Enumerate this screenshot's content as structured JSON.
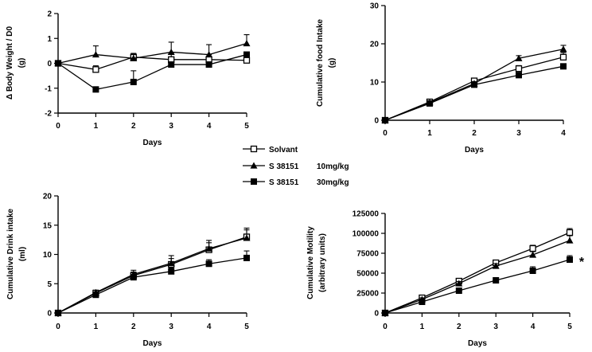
{
  "legend": {
    "entries": [
      {
        "label": "Solvant",
        "dose": "",
        "marker": "square-open"
      },
      {
        "label": "S 38151",
        "dose": "10mg/kg",
        "marker": "triangle-filled"
      },
      {
        "label": "S 38151",
        "dose": "30mg/kg",
        "marker": "square-filled"
      }
    ]
  },
  "chart_data": [
    {
      "type": "line",
      "id": "body-weight",
      "xlabel": "Days",
      "ylabel_lines": [
        "Δ Body Weight / D0",
        "(g)"
      ],
      "xlim": [
        0,
        5
      ],
      "ylim": [
        -2,
        2
      ],
      "xticks": [
        "0",
        "1",
        "2",
        "3",
        "4",
        "5"
      ],
      "yticks": [
        "-2",
        "-1",
        "0",
        "1",
        "2"
      ],
      "x": [
        0,
        1,
        2,
        3,
        4,
        5
      ],
      "series": [
        {
          "name": "Solvant",
          "marker": "square-open",
          "values": [
            0,
            -0.25,
            0.25,
            0.15,
            0.15,
            0.12
          ],
          "errors": [
            0,
            0.15,
            0.15,
            0.25,
            0.2,
            0.1
          ]
        },
        {
          "name": "S 38151 10mg/kg",
          "marker": "triangle-filled",
          "values": [
            0,
            0.35,
            0.2,
            0.45,
            0.35,
            0.8
          ],
          "errors": [
            0,
            0.35,
            0.15,
            0.4,
            0.4,
            0.35
          ]
        },
        {
          "name": "S 38151 30mg/kg",
          "marker": "square-filled",
          "values": [
            0,
            -1.05,
            -0.75,
            -0.05,
            -0.05,
            0.35
          ],
          "errors": [
            0,
            0.1,
            0.45,
            0.1,
            0.1,
            0.1
          ]
        }
      ],
      "annotations": []
    },
    {
      "type": "line",
      "id": "food-intake",
      "xlabel": "Days",
      "ylabel_lines": [
        "Cumulative food Intake",
        "(g)"
      ],
      "xlim": [
        0,
        4
      ],
      "ylim": [
        0,
        30
      ],
      "xticks": [
        "0",
        "1",
        "2",
        "3",
        "4"
      ],
      "yticks": [
        "0",
        "10",
        "20",
        "30"
      ],
      "x": [
        0,
        1,
        2,
        3,
        4
      ],
      "series": [
        {
          "name": "Solvant",
          "marker": "square-open",
          "values": [
            0,
            4.8,
            10.3,
            13.5,
            16.5
          ],
          "errors": [
            0,
            0.4,
            0.5,
            0.8,
            1.2
          ]
        },
        {
          "name": "S 38151 10mg/kg",
          "marker": "triangle-filled",
          "values": [
            0,
            4.6,
            9.6,
            16.2,
            18.6
          ],
          "errors": [
            0,
            0.4,
            0.5,
            0.7,
            1
          ]
        },
        {
          "name": "S 38151 30mg/kg",
          "marker": "square-filled",
          "values": [
            0,
            4.4,
            9.3,
            11.8,
            14.1
          ],
          "errors": [
            0,
            0.3,
            0.4,
            0.6,
            0.6
          ]
        }
      ],
      "annotations": []
    },
    {
      "type": "line",
      "id": "drink-intake",
      "xlabel": "Days",
      "ylabel_lines": [
        "Cumulative Drink intake",
        "(ml)"
      ],
      "xlim": [
        0,
        5
      ],
      "ylim": [
        0,
        20
      ],
      "xticks": [
        "0",
        "1",
        "2",
        "3",
        "4",
        "5"
      ],
      "yticks": [
        "0",
        "5",
        "10",
        "15",
        "20"
      ],
      "x": [
        0,
        1,
        2,
        3,
        4,
        5
      ],
      "series": [
        {
          "name": "Solvant",
          "marker": "square-open",
          "values": [
            0,
            3.4,
            6.4,
            8.3,
            10.8,
            13
          ],
          "errors": [
            0,
            0.4,
            0.6,
            1,
            1.2,
            1.5
          ]
        },
        {
          "name": "S 38151 10mg/kg",
          "marker": "triangle-filled",
          "values": [
            0,
            3.5,
            6.6,
            8.5,
            11,
            12.8
          ],
          "errors": [
            0,
            0.4,
            0.7,
            1.3,
            1.4,
            1.4
          ]
        },
        {
          "name": "S 38151 30mg/kg",
          "marker": "square-filled",
          "values": [
            0,
            3.1,
            6.1,
            7.1,
            8.4,
            9.4
          ],
          "errors": [
            0,
            0.3,
            0.4,
            0.6,
            0.7,
            1.2
          ]
        }
      ],
      "annotations": []
    },
    {
      "type": "line",
      "id": "motility",
      "xlabel": "Days",
      "ylabel_lines": [
        "Cumulative Motility",
        "(arbitrary units)"
      ],
      "xlim": [
        0,
        5
      ],
      "ylim": [
        0,
        125000
      ],
      "xticks": [
        "0",
        "1",
        "2",
        "3",
        "4",
        "5"
      ],
      "yticks": [
        "0",
        "25000",
        "50000",
        "75000",
        "100000",
        "125000"
      ],
      "x": [
        0,
        1,
        2,
        3,
        4,
        5
      ],
      "series": [
        {
          "name": "Solvant",
          "marker": "square-open",
          "values": [
            0,
            19000,
            40000,
            63000,
            81000,
            101000
          ],
          "errors": [
            0,
            2000,
            2500,
            3000,
            4000,
            5000
          ]
        },
        {
          "name": "S 38151 10mg/kg",
          "marker": "triangle-filled",
          "values": [
            0,
            17000,
            37000,
            59000,
            73000,
            91000
          ],
          "errors": [
            0,
            2000,
            2500,
            3000,
            4000,
            6000
          ]
        },
        {
          "name": "S 38151 30mg/kg",
          "marker": "square-filled",
          "values": [
            0,
            14000,
            28000,
            41000,
            53000,
            67000
          ],
          "errors": [
            0,
            1500,
            2000,
            3000,
            5000,
            5000
          ]
        }
      ],
      "annotations": [
        {
          "text": "*"
        }
      ]
    }
  ]
}
